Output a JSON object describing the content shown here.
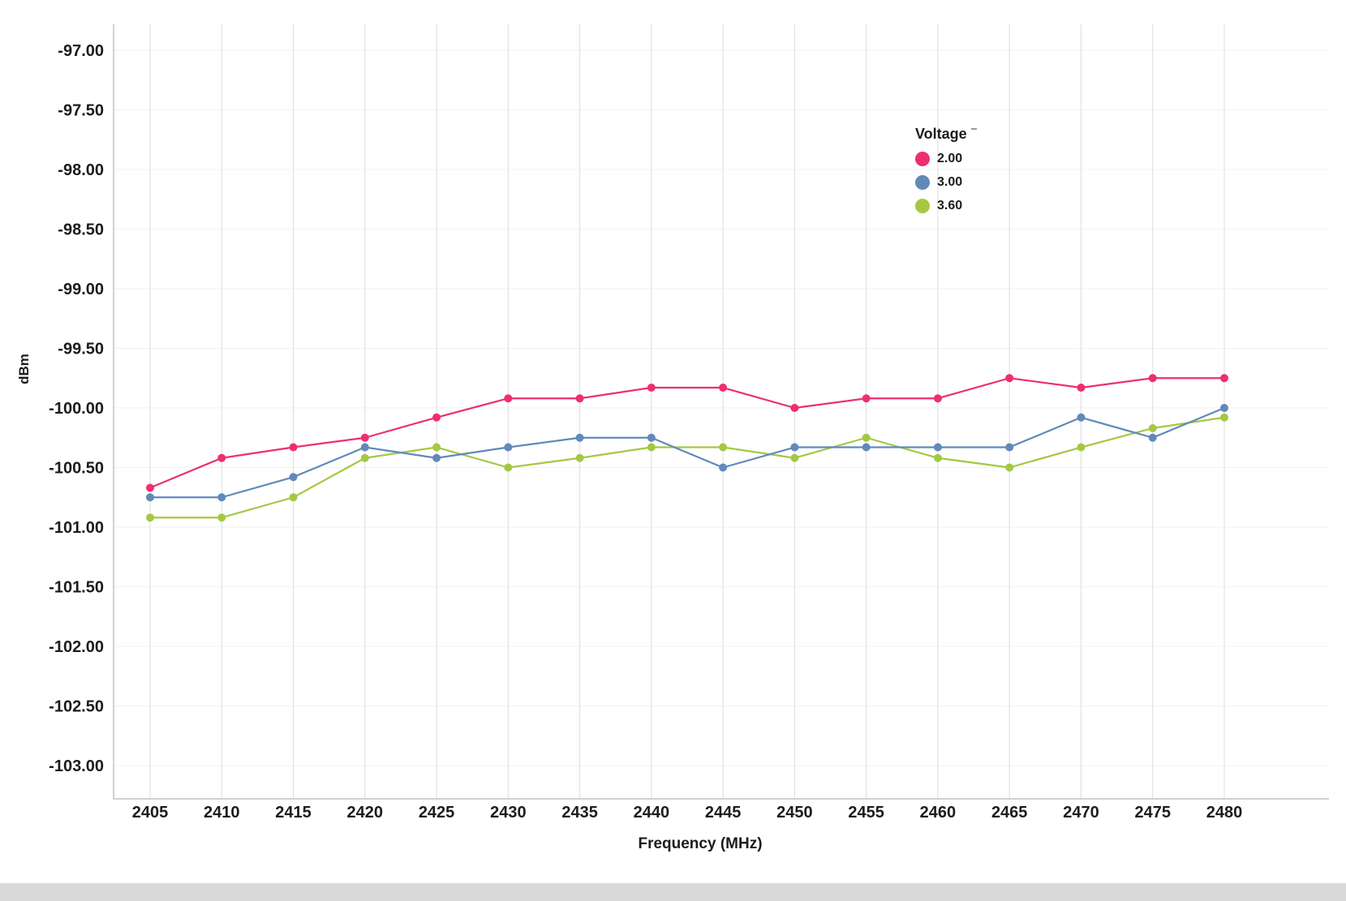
{
  "chart_data": {
    "type": "line",
    "title": "",
    "xlabel": "Frequency (MHz)",
    "ylabel": "dBm",
    "legend_title": "Voltage",
    "legend_position": "inside-top-right",
    "grid": true,
    "x": [
      2405,
      2410,
      2415,
      2420,
      2425,
      2430,
      2435,
      2440,
      2445,
      2450,
      2455,
      2460,
      2465,
      2470,
      2475,
      2480
    ],
    "xlim": [
      2402.5,
      2487.3
    ],
    "ylim": [
      -103.28,
      -96.78
    ],
    "yticks": [
      -97.0,
      -97.5,
      -98.0,
      -98.5,
      -99.0,
      -99.5,
      -100.0,
      -100.5,
      -101.0,
      -101.5,
      -102.0,
      -102.5,
      -103.0
    ],
    "series": [
      {
        "name": "2.00",
        "color": "#ed2f6e",
        "values": [
          -100.67,
          -100.42,
          -100.33,
          -100.25,
          -100.08,
          -99.92,
          -99.92,
          -99.83,
          -99.83,
          -100.0,
          -99.92,
          -99.92,
          -99.75,
          -99.83,
          -99.75,
          -99.75
        ]
      },
      {
        "name": "3.00",
        "color": "#6189b9",
        "values": [
          -100.75,
          -100.75,
          -100.58,
          -100.33,
          -100.42,
          -100.33,
          -100.25,
          -100.25,
          -100.5,
          -100.33,
          -100.33,
          -100.33,
          -100.33,
          -100.08,
          -100.25,
          -100.0
        ]
      },
      {
        "name": "3.60",
        "color": "#a5c843",
        "values": [
          -100.92,
          -100.92,
          -100.75,
          -100.42,
          -100.33,
          -100.5,
          -100.42,
          -100.33,
          -100.33,
          -100.42,
          -100.25,
          -100.42,
          -100.5,
          -100.33,
          -100.17,
          -100.08
        ]
      }
    ],
    "axis_color": "#b5b5b5",
    "vgrid_color": "#dcdcdc",
    "hgrid_color": "#f1f1f1",
    "text_color": "#1c1c1c"
  }
}
